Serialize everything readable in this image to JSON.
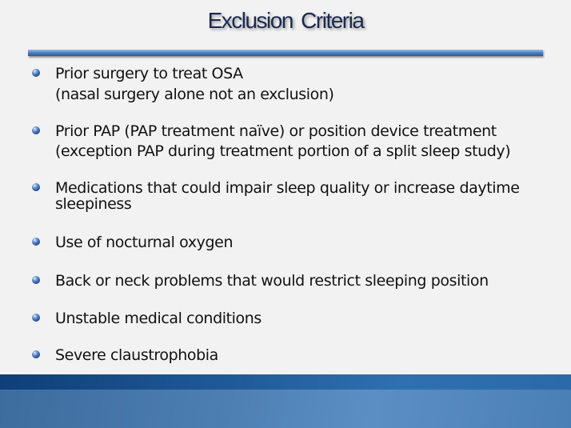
{
  "slide": {
    "title": "Exclusion  Criteria",
    "items": [
      {
        "line1": "Prior surgery to treat OSA",
        "line2": "(nasal surgery alone not an exclusion)"
      },
      {
        "line1": "Prior PAP (PAP treatment naïve) or position device treatment",
        "line2": "(exception PAP during treatment portion of a split sleep study)"
      },
      {
        "line1": "Medications that could impair sleep quality or increase daytime",
        "line2": "sleepiness"
      },
      {
        "line1": "Use of nocturnal oxygen"
      },
      {
        "line1": "Back or neck problems that would restrict sleeping position"
      },
      {
        "line1": "Unstable medical conditions"
      },
      {
        "line1": "Severe claustrophobia"
      }
    ]
  }
}
